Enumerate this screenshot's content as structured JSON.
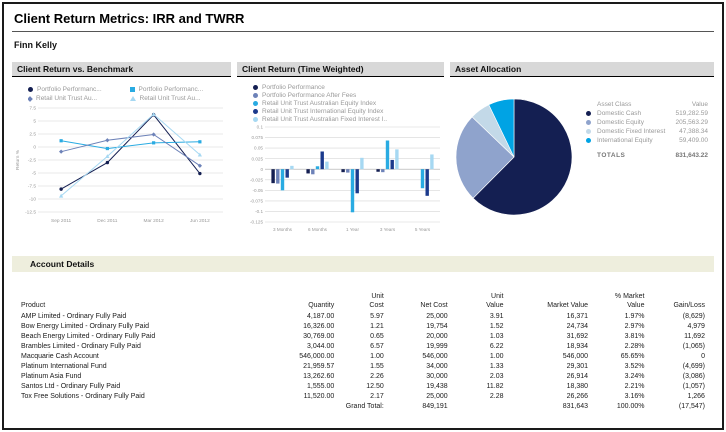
{
  "page": {
    "title": "Client Return Metrics: IRR and TWRR",
    "client_name": "Finn Kelly"
  },
  "colors": {
    "navy": "#141f52",
    "slate_blue": "#6d82b8",
    "bright_blue": "#29abe2",
    "dark_blue": "#1b3a8c",
    "pale_blue": "#a6d8f2",
    "panel_header_bg": "#d8d8d8",
    "section_header_bg": "#eeeedd"
  },
  "chart_data": [
    {
      "type": "line",
      "title": "Client Return vs. Benchmark",
      "ylabel": "Return %",
      "ylim": [
        -12.5,
        7.5
      ],
      "ytick_step": 2.5,
      "x": [
        "Sep 2011",
        "Dec 2011",
        "Mar 2012",
        "Jun 2012"
      ],
      "grid": true,
      "legend_position": "top",
      "series": [
        {
          "name": "Portfolio Performanc...",
          "marker": "circle",
          "color": "#141f52",
          "values": [
            -8.1,
            -3.0,
            6.2,
            -5.1
          ]
        },
        {
          "name": "Portfolio Performanc...",
          "marker": "square",
          "color": "#29abe2",
          "values": [
            1.2,
            -0.3,
            0.8,
            1.0
          ]
        },
        {
          "name": "Retail Unit Trust Au...",
          "marker": "diamond",
          "color": "#6d82b8",
          "values": [
            -0.9,
            1.3,
            2.4,
            -3.6
          ]
        },
        {
          "name": "Retail Unit Trust Au...",
          "marker": "triangle",
          "color": "#a6d8f2",
          "values": [
            -9.4,
            -1.8,
            6.3,
            -1.5
          ]
        }
      ]
    },
    {
      "type": "bar",
      "title": "Client Return (Time Weighted)",
      "ylim": [
        -0.125,
        0.1
      ],
      "ytick_step": 0.025,
      "categories": [
        "3 Months",
        "6 Months",
        "1 Year",
        "3 Years",
        "5 Years"
      ],
      "grid": true,
      "legend_position": "top",
      "series": [
        {
          "name": "Portfolio Performance",
          "color": "#141f52",
          "values": [
            -0.033,
            -0.01,
            -0.007,
            -0.006,
            0
          ]
        },
        {
          "name": "Portfolio Performance After Fees",
          "color": "#6d82b8",
          "values": [
            -0.034,
            -0.012,
            -0.008,
            -0.007,
            0
          ]
        },
        {
          "name": "Retail Unit Trust Australian Equity Index",
          "color": "#29abe2",
          "values": [
            -0.05,
            0.007,
            -0.102,
            0.068,
            -0.045
          ]
        },
        {
          "name": "Retail Unit Trust International Equity Index",
          "color": "#1b3a8c",
          "values": [
            -0.02,
            0.042,
            -0.057,
            0.022,
            -0.063
          ]
        },
        {
          "name": "Retail Unit Trust Australian Fixed Interest I..",
          "color": "#a6d8f2",
          "values": [
            0.008,
            0.018,
            0.027,
            0.047,
            0.035
          ]
        }
      ]
    },
    {
      "type": "pie",
      "title": "Asset Allocation",
      "col_asset_class": "Asset Class",
      "col_value": "Value",
      "labels": [
        "Domestic Cash",
        "Domestic Equity",
        "Domestic Fixed Interest",
        "International Equity"
      ],
      "values": [
        519282.59,
        205563.29,
        47388.34,
        59409.0
      ],
      "display_values": [
        "519,282.59",
        "205,563.29",
        "47,388.34",
        "59,409.00"
      ],
      "colors": [
        "#141f52",
        "#8fa3cc",
        "#c3d9e8",
        "#00a3e4"
      ],
      "totals_label": "TOTALS",
      "totals_display": "831,643.22",
      "legend_position": "right"
    }
  ],
  "account_details": {
    "title": "Account Details",
    "columns": [
      "Product",
      "Quantity",
      "Unit\nCost",
      "Net Cost",
      "Unit\nValue",
      "Market Value",
      "% Market\nValue",
      "Gain/Loss"
    ],
    "rows": [
      [
        "AMP Limited - Ordinary Fully Paid",
        "4,187.00",
        "5.97",
        "25,000",
        "3.91",
        "16,371",
        "1.97%",
        "(8,629)"
      ],
      [
        "Bow Energy Limited - Ordinary Fully Paid",
        "16,326.00",
        "1.21",
        "19,754",
        "1.52",
        "24,734",
        "2.97%",
        "4,979"
      ],
      [
        "Beach Energy Limited - Ordinary Fully Paid",
        "30,769.00",
        "0.65",
        "20,000",
        "1.03",
        "31,692",
        "3.81%",
        "11,692"
      ],
      [
        "Brambles Limited - Ordinary Fully Paid",
        "3,044.00",
        "6.57",
        "19,999",
        "6.22",
        "18,934",
        "2.28%",
        "(1,065)"
      ],
      [
        "Macquarie Cash Account",
        "546,000.00",
        "1.00",
        "546,000",
        "1.00",
        "546,000",
        "65.65%",
        "0"
      ],
      [
        "Platinum International Fund",
        "21,959.57",
        "1.55",
        "34,000",
        "1.33",
        "29,301",
        "3.52%",
        "(4,699)"
      ],
      [
        "Platinum Asia Fund",
        "13,262.60",
        "2.26",
        "30,000",
        "2.03",
        "26,914",
        "3.24%",
        "(3,086)"
      ],
      [
        "Santos Ltd - Ordinary Fully Paid",
        "1,555.00",
        "12.50",
        "19,438",
        "11.82",
        "18,380",
        "2.21%",
        "(1,057)"
      ],
      [
        "Tox Free Solutions - Ordinary Fully Paid",
        "11,520.00",
        "2.17",
        "25,000",
        "2.28",
        "26,266",
        "3.16%",
        "1,266"
      ]
    ],
    "grand_total": {
      "label": "Grand Total:",
      "net_cost": "849,191",
      "market_value": "831,643",
      "pct_market_value": "100.00%",
      "gain_loss": "(17,547)"
    }
  }
}
